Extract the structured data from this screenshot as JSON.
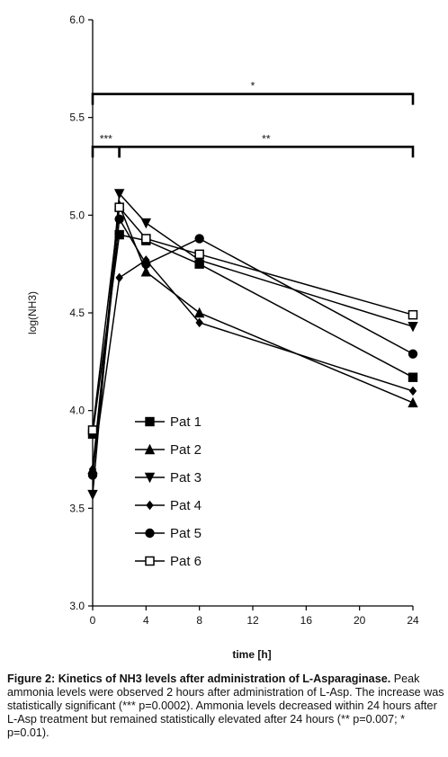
{
  "chart_data": {
    "type": "line",
    "xlabel": "time [h]",
    "ylabel": "log(NH3)",
    "xlim": [
      0,
      24
    ],
    "ylim": [
      3.0,
      6.0
    ],
    "x_ticks": [
      0,
      4,
      8,
      12,
      16,
      20,
      24
    ],
    "y_ticks": [
      "3.0",
      "3.5",
      "4.0",
      "4.5",
      "5.0",
      "5.5",
      "6.0"
    ],
    "legend_position": "lower-left",
    "grid": false,
    "x": [
      0,
      2,
      4,
      8,
      24
    ],
    "series": [
      {
        "name": "Pat 1",
        "marker": "square",
        "values": [
          3.88,
          4.9,
          4.87,
          4.75,
          4.17
        ]
      },
      {
        "name": "Pat 2",
        "marker": "triangle-up",
        "values": [
          3.7,
          5.05,
          4.71,
          4.5,
          4.04
        ]
      },
      {
        "name": "Pat 3",
        "marker": "triangle-down",
        "values": [
          3.57,
          5.11,
          4.96,
          4.77,
          4.43
        ]
      },
      {
        "name": "Pat 4",
        "marker": "diamond",
        "values": [
          3.7,
          4.68,
          4.77,
          4.45,
          4.1
        ]
      },
      {
        "name": "Pat 5",
        "marker": "circle",
        "values": [
          3.67,
          4.98,
          4.75,
          4.88,
          4.29
        ]
      },
      {
        "name": "Pat 6",
        "marker": "open-square",
        "values": [
          3.9,
          5.04,
          4.88,
          4.8,
          4.49
        ]
      }
    ],
    "significance": [
      {
        "label": "*",
        "x_from": 0,
        "x_to": 24,
        "y": 5.62
      },
      {
        "label": "***",
        "x_from": 0,
        "x_to": 2,
        "y": 5.35
      },
      {
        "label": "**",
        "x_from": 2,
        "x_to": 24,
        "y": 5.35
      }
    ]
  },
  "caption": {
    "label": "Figure 2:",
    "title": "Kinetics of NH3 levels after administration of L-Asparaginase.",
    "body": "Peak ammonia levels were observed 2 hours after administration of L-Asp. The increase was statistically significant (*** p=0.0002). Ammonia levels decreased within 24 hours after L-Asp treatment but remained statistically elevated after 24 hours (** p=0.007; * p=0.01)."
  }
}
